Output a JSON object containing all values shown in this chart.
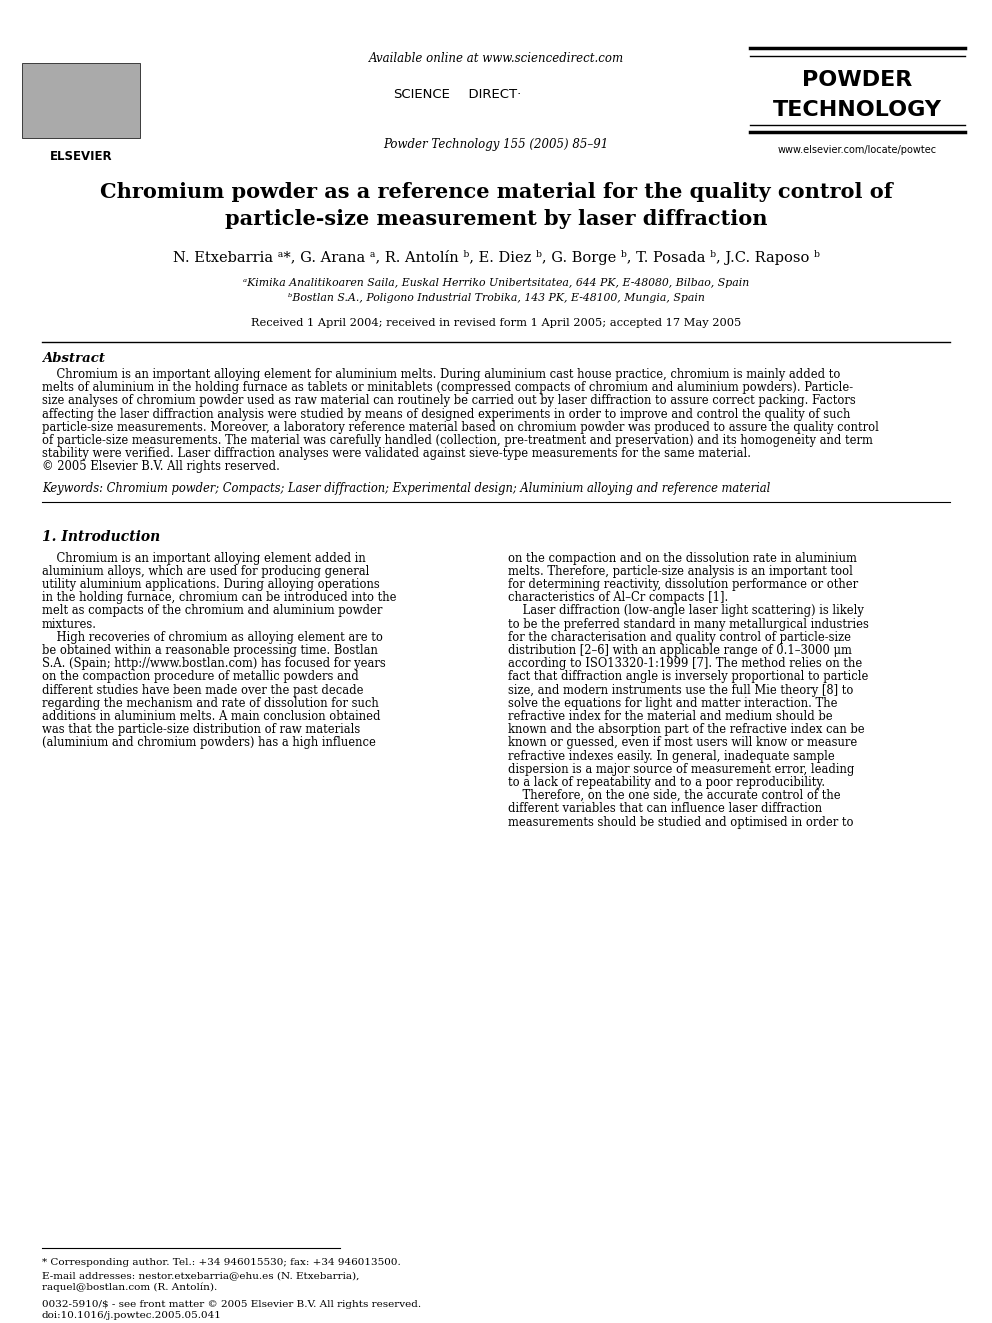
{
  "background_color": "#ffffff",
  "header": {
    "available_online": "Available online at www.sciencedirect.com",
    "journal_info": "Powder Technology 155 (2005) 85–91",
    "journal_name_line1": "POWDER",
    "journal_name_line2": "TECHNOLOGY",
    "website": "www.elsevier.com/locate/powtec"
  },
  "title": "Chromium powder as a reference material for the quality control of\nparticle-size measurement by laser diffraction",
  "authors": "N. Etxebarria ᵃ*, G. Arana ᵃ, R. Antolín ᵇ, E. Diez ᵇ, G. Borge ᵇ, T. Posada ᵇ, J.C. Raposo ᵇ",
  "affil1": "ᵃKimika Analitikoaren Saila, Euskal Herriko Unibertsitatea, 644 PK, E-48080, Bilbao, Spain",
  "affil2": "ᵇBostlan S.A., Poligono Industrial Trobika, 143 PK, E-48100, Mungia, Spain",
  "received": "Received 1 April 2004; received in revised form 1 April 2005; accepted 17 May 2005",
  "abstract_title": "Abstract",
  "keywords": "Keywords: Chromium powder; Compacts; Laser diffraction; Experimental design; Aluminium alloying and reference material",
  "section1_title": "1. Introduction",
  "footnote_star": "* Corresponding author. Tel.: +34 946015530; fax: +34 946013500.",
  "footnote_email1": "E-mail addresses: nestor.etxebarria@ehu.es (N. Etxebarria),",
  "footnote_email2": "raquel@bostlan.com (R. Antolín).",
  "footnote_issn1": "0032-5910/$ - see front matter © 2005 Elsevier B.V. All rights reserved.",
  "footnote_issn2": "doi:10.1016/j.powtec.2005.05.041",
  "abstract_lines": [
    "    Chromium is an important alloying element for aluminium melts. During aluminium cast house practice, chromium is mainly added to",
    "melts of aluminium in the holding furnace as tablets or minitablets (compressed compacts of chromium and aluminium powders). Particle-",
    "size analyses of chromium powder used as raw material can routinely be carried out by laser diffraction to assure correct packing. Factors",
    "affecting the laser diffraction analysis were studied by means of designed experiments in order to improve and control the quality of such",
    "particle-size measurements. Moreover, a laboratory reference material based on chromium powder was produced to assure the quality control",
    "of particle-size measurements. The material was carefully handled (collection, pre-treatment and preservation) and its homogeneity and term",
    "stability were verified. Laser diffraction analyses were validated against sieve-type measurements for the same material.",
    "© 2005 Elsevier B.V. All rights reserved."
  ],
  "col1_lines": [
    "    Chromium is an important alloying element added in",
    "aluminium alloys, which are used for producing general",
    "utility aluminium applications. During alloying operations",
    "in the holding furnace, chromium can be introduced into the",
    "melt as compacts of the chromium and aluminium powder",
    "mixtures.",
    "    High recoveries of chromium as alloying element are to",
    "be obtained within a reasonable processing time. Bostlan",
    "S.A. (Spain; http://www.bostlan.com) has focused for years",
    "on the compaction procedure of metallic powders and",
    "different studies have been made over the past decade",
    "regarding the mechanism and rate of dissolution for such",
    "additions in aluminium melts. A main conclusion obtained",
    "was that the particle-size distribution of raw materials",
    "(aluminium and chromium powders) has a high influence"
  ],
  "col2_lines": [
    "on the compaction and on the dissolution rate in aluminium",
    "melts. Therefore, particle-size analysis is an important tool",
    "for determining reactivity, dissolution performance or other",
    "characteristics of Al–Cr compacts [1].",
    "    Laser diffraction (low-angle laser light scattering) is likely",
    "to be the preferred standard in many metallurgical industries",
    "for the characterisation and quality control of particle-size",
    "distribution [2–6] with an applicable range of 0.1–3000 μm",
    "according to ISO13320-1:1999 [7]. The method relies on the",
    "fact that diffraction angle is inversely proportional to particle",
    "size, and modern instruments use the full Mie theory [8] to",
    "solve the equations for light and matter interaction. The",
    "refractive index for the material and medium should be",
    "known and the absorption part of the refractive index can be",
    "known or guessed, even if most users will know or measure",
    "refractive indexes easily. In general, inadequate sample",
    "dispersion is a major source of measurement error, leading",
    "to a lack of repeatability and to a poor reproducibility.",
    "    Therefore, on the one side, the accurate control of the",
    "different variables that can influence laser diffraction",
    "measurements should be studied and optimised in order to"
  ]
}
